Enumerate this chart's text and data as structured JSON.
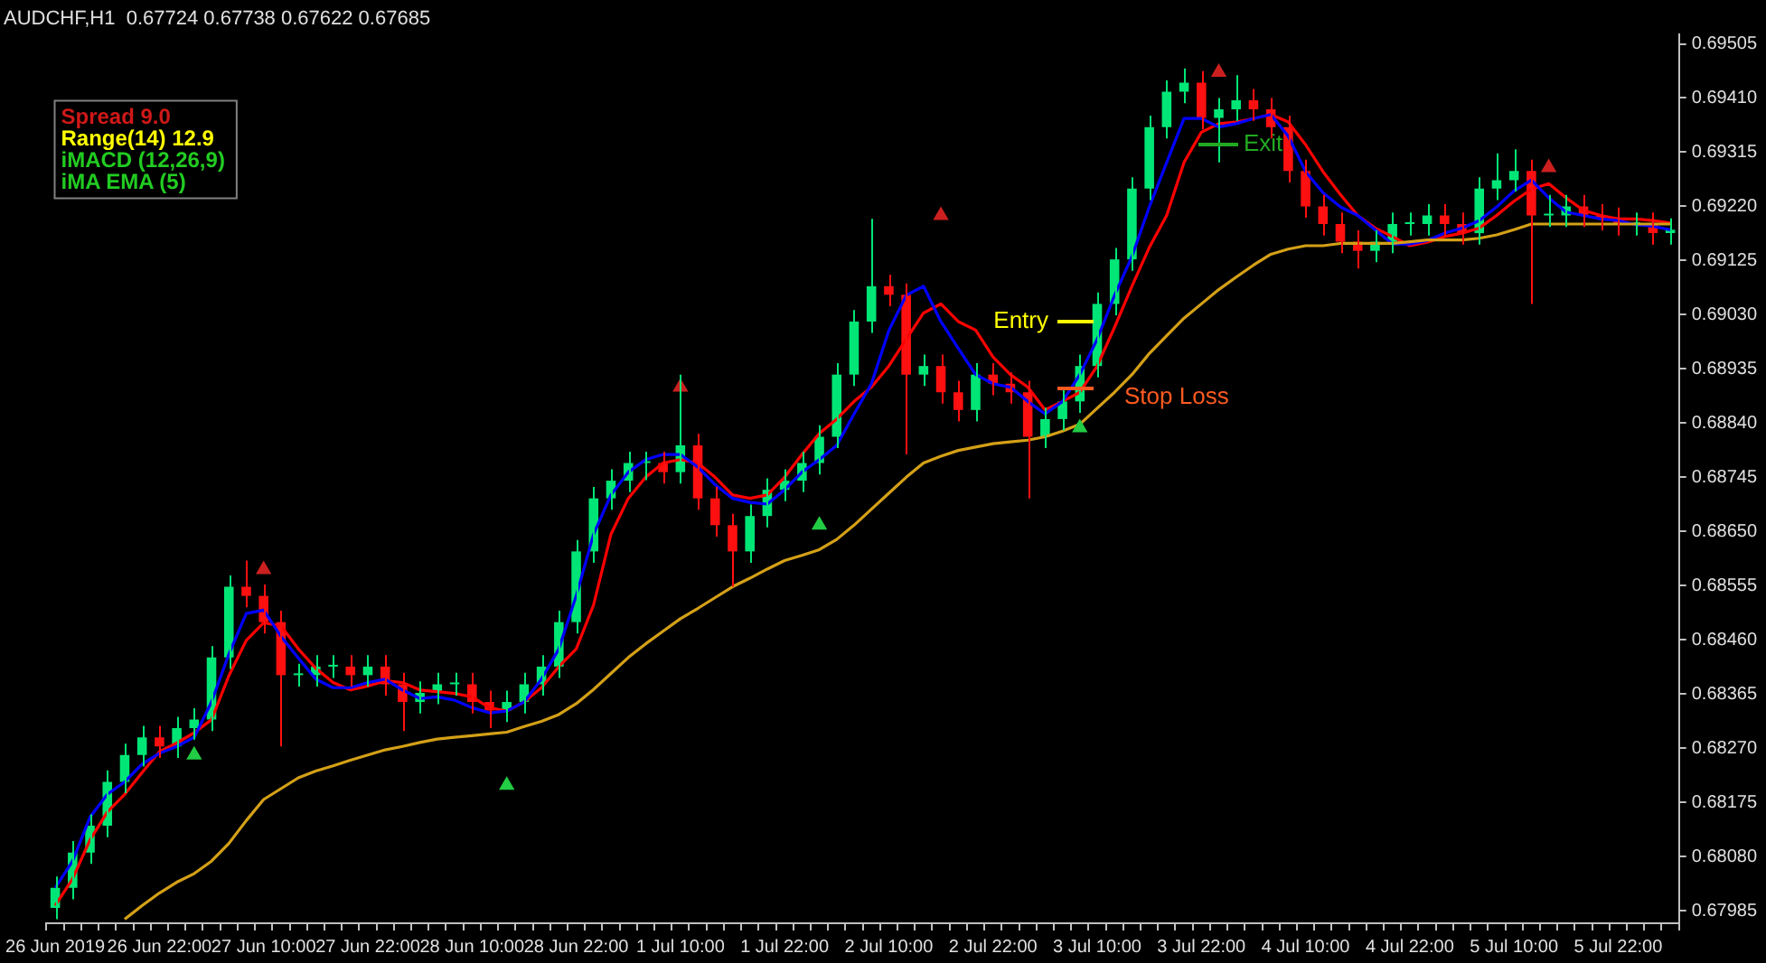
{
  "chart_data": {
    "type": "candlestick",
    "title": "AUDCHF,H1  0.67724 0.67738 0.67622 0.67685",
    "categories": [
      "26 Jun 2019",
      null,
      null,
      null,
      null,
      null,
      "26 Jun 22:00",
      null,
      null,
      null,
      null,
      null,
      "27 Jun 10:00",
      null,
      null,
      null,
      null,
      null,
      "27 Jun 22:00",
      null,
      null,
      null,
      null,
      null,
      "28 Jun 10:00",
      null,
      null,
      null,
      null,
      null,
      "28 Jun 22:00",
      null,
      null,
      null,
      null,
      null,
      "1 Jul 10:00",
      null,
      null,
      null,
      null,
      null,
      "1 Jul 22:00",
      null,
      null,
      null,
      null,
      null,
      "2 Jul 10:00",
      null,
      null,
      null,
      null,
      null,
      "2 Jul 22:00",
      null,
      null,
      null,
      null,
      null,
      "3 Jul 10:00",
      null,
      null,
      null,
      null,
      null,
      "3 Jul 22:00",
      null,
      null,
      null,
      null,
      null,
      "4 Jul 10:00",
      null,
      null,
      null,
      null,
      null,
      "4 Jul 22:00",
      null,
      null,
      null,
      null,
      null,
      "5 Jul 10:00",
      null,
      null,
      null,
      null,
      null,
      "5 Jul 22:00",
      null,
      null,
      null
    ],
    "ohlc": [
      [
        0.6799,
        0.68045,
        0.6797,
        0.68025
      ],
      [
        0.68025,
        0.68107,
        0.68005,
        0.68087
      ],
      [
        0.68087,
        0.68154,
        0.68067,
        0.68134
      ],
      [
        0.68134,
        0.68231,
        0.68114,
        0.68211
      ],
      [
        0.68211,
        0.68278,
        0.68191,
        0.68258
      ],
      [
        0.68258,
        0.68309,
        0.68238,
        0.68289
      ],
      [
        0.68289,
        0.68309,
        0.68253,
        0.68273
      ],
      [
        0.68273,
        0.68325,
        0.68253,
        0.68305
      ],
      [
        0.68305,
        0.6834,
        0.68285,
        0.6832
      ],
      [
        0.6832,
        0.68449,
        0.683,
        0.68429
      ],
      [
        0.68429,
        0.68573,
        0.68409,
        0.68553
      ],
      [
        0.68553,
        0.68599,
        0.68517,
        0.68537
      ],
      [
        0.68537,
        0.68557,
        0.68471,
        0.68491
      ],
      [
        0.68491,
        0.68511,
        0.68273,
        0.68398
      ],
      [
        0.68398,
        0.68418,
        0.68378,
        0.68398
      ],
      [
        0.68398,
        0.68433,
        0.68378,
        0.68413
      ],
      [
        0.68413,
        0.68433,
        0.68393,
        0.68413
      ],
      [
        0.68413,
        0.68433,
        0.68378,
        0.68398
      ],
      [
        0.68398,
        0.68433,
        0.68378,
        0.68413
      ],
      [
        0.68413,
        0.68433,
        0.68362,
        0.68382
      ],
      [
        0.68382,
        0.68402,
        0.683,
        0.68351
      ],
      [
        0.68351,
        0.68387,
        0.68331,
        0.68367
      ],
      [
        0.68367,
        0.68402,
        0.68347,
        0.68382
      ],
      [
        0.68382,
        0.68402,
        0.68362,
        0.68382
      ],
      [
        0.68382,
        0.68402,
        0.68331,
        0.68351
      ],
      [
        0.68351,
        0.68371,
        0.68305,
        0.68336
      ],
      [
        0.68336,
        0.68371,
        0.68316,
        0.68351
      ],
      [
        0.68351,
        0.68402,
        0.68331,
        0.68382
      ],
      [
        0.68382,
        0.68433,
        0.68362,
        0.68413
      ],
      [
        0.68413,
        0.68511,
        0.68393,
        0.68491
      ],
      [
        0.68491,
        0.68635,
        0.68471,
        0.68615
      ],
      [
        0.68615,
        0.68728,
        0.68595,
        0.68708
      ],
      [
        0.68708,
        0.68759,
        0.68688,
        0.68739
      ],
      [
        0.68739,
        0.6879,
        0.68719,
        0.6877
      ],
      [
        0.6877,
        0.6879,
        0.6874,
        0.6877
      ],
      [
        0.6877,
        0.6879,
        0.68734,
        0.68754
      ],
      [
        0.68754,
        0.68925,
        0.68734,
        0.68801
      ],
      [
        0.68801,
        0.68821,
        0.68688,
        0.68708
      ],
      [
        0.68708,
        0.68728,
        0.68641,
        0.68661
      ],
      [
        0.68661,
        0.68681,
        0.68553,
        0.68615
      ],
      [
        0.68615,
        0.68697,
        0.68595,
        0.68677
      ],
      [
        0.68677,
        0.68743,
        0.68657,
        0.68723
      ],
      [
        0.68723,
        0.68759,
        0.68703,
        0.68739
      ],
      [
        0.68739,
        0.6879,
        0.68719,
        0.6877
      ],
      [
        0.6877,
        0.68836,
        0.6875,
        0.68816
      ],
      [
        0.68816,
        0.68945,
        0.68796,
        0.68925
      ],
      [
        0.68925,
        0.69038,
        0.68905,
        0.69018
      ],
      [
        0.69018,
        0.69198,
        0.68998,
        0.6908
      ],
      [
        0.6908,
        0.691,
        0.69045,
        0.69065
      ],
      [
        0.69065,
        0.69085,
        0.68785,
        0.68925
      ],
      [
        0.68925,
        0.6896,
        0.68905,
        0.6894
      ],
      [
        0.6894,
        0.6896,
        0.68874,
        0.68894
      ],
      [
        0.68894,
        0.68914,
        0.68843,
        0.68863
      ],
      [
        0.68863,
        0.68945,
        0.68843,
        0.68925
      ],
      [
        0.68925,
        0.68945,
        0.68889,
        0.68909
      ],
      [
        0.68909,
        0.68929,
        0.68874,
        0.68894
      ],
      [
        0.68894,
        0.68914,
        0.68708,
        0.68816
      ],
      [
        0.68816,
        0.68867,
        0.68796,
        0.68847
      ],
      [
        0.68847,
        0.68898,
        0.68827,
        0.68878
      ],
      [
        0.68878,
        0.6896,
        0.68858,
        0.6894
      ],
      [
        0.6894,
        0.69069,
        0.6892,
        0.69049
      ],
      [
        0.69049,
        0.69147,
        0.69029,
        0.69127
      ],
      [
        0.69127,
        0.69271,
        0.69107,
        0.69251
      ],
      [
        0.69251,
        0.69379,
        0.69231,
        0.69359
      ],
      [
        0.69359,
        0.69441,
        0.69339,
        0.69421
      ],
      [
        0.69421,
        0.69462,
        0.69401,
        0.69437
      ],
      [
        0.69437,
        0.69457,
        0.69355,
        0.69375
      ],
      [
        0.69375,
        0.6941,
        0.69297,
        0.6939
      ],
      [
        0.6939,
        0.6945,
        0.6937,
        0.69406
      ],
      [
        0.69406,
        0.69426,
        0.6937,
        0.6939
      ],
      [
        0.6939,
        0.6941,
        0.69339,
        0.69359
      ],
      [
        0.69359,
        0.69379,
        0.69262,
        0.69282
      ],
      [
        0.69282,
        0.69302,
        0.692,
        0.6922
      ],
      [
        0.6922,
        0.6924,
        0.69169,
        0.69189
      ],
      [
        0.69189,
        0.69209,
        0.69138,
        0.69158
      ],
      [
        0.69158,
        0.69178,
        0.69111,
        0.69142
      ],
      [
        0.69142,
        0.69178,
        0.69122,
        0.69158
      ],
      [
        0.69158,
        0.69209,
        0.69138,
        0.69189
      ],
      [
        0.69189,
        0.69209,
        0.69169,
        0.69189
      ],
      [
        0.69189,
        0.69224,
        0.69169,
        0.69204
      ],
      [
        0.69204,
        0.69224,
        0.69169,
        0.69189
      ],
      [
        0.69189,
        0.69209,
        0.69153,
        0.69173
      ],
      [
        0.69173,
        0.69271,
        0.69153,
        0.69251
      ],
      [
        0.69251,
        0.69313,
        0.69231,
        0.69266
      ],
      [
        0.69266,
        0.6932,
        0.69246,
        0.69282
      ],
      [
        0.69282,
        0.69302,
        0.69049,
        0.69204
      ],
      [
        0.69204,
        0.6924,
        0.69184,
        0.69204
      ],
      [
        0.69204,
        0.6924,
        0.69184,
        0.6922
      ],
      [
        0.6922,
        0.6924,
        0.69184,
        0.69204
      ],
      [
        0.69204,
        0.69224,
        0.69178,
        0.69198
      ],
      [
        0.69198,
        0.69218,
        0.69169,
        0.69189
      ],
      [
        0.69189,
        0.69209,
        0.69169,
        0.69189
      ],
      [
        0.69189,
        0.69209,
        0.69153,
        0.69173
      ],
      [
        0.69173,
        0.69199,
        0.69153,
        0.69179
      ]
    ],
    "series": [
      {
        "type": "line",
        "color": "#d4a017",
        "values": [
          null,
          null,
          null,
          null,
          0.6797,
          0.67994,
          0.68016,
          0.68035,
          0.6805,
          0.68072,
          0.68103,
          0.68143,
          0.6818,
          0.68199,
          0.68218,
          0.6823,
          0.68239,
          0.68249,
          0.68258,
          0.68267,
          0.68273,
          0.6828,
          0.68286,
          0.68289,
          0.68292,
          0.68295,
          0.68298,
          0.68308,
          0.68317,
          0.68329,
          0.68348,
          0.68373,
          0.68401,
          0.68429,
          0.68453,
          0.68475,
          0.68497,
          0.68515,
          0.68534,
          0.68553,
          0.68568,
          0.68584,
          0.68599,
          0.68608,
          0.68618,
          0.68636,
          0.68661,
          0.68689,
          0.68717,
          0.68745,
          0.6877,
          0.68782,
          0.68792,
          0.68798,
          0.68804,
          0.68807,
          0.6881,
          0.68816,
          0.68826,
          0.68838,
          0.68866,
          0.68894,
          0.68925,
          0.68962,
          0.68993,
          0.69024,
          0.69049,
          0.69074,
          0.69096,
          0.69117,
          0.69136,
          0.69145,
          0.69151,
          0.69151,
          0.69155,
          0.69155,
          0.69155,
          0.69155,
          0.69158,
          0.69161,
          0.69161,
          0.69161,
          0.69164,
          0.6917,
          0.69179,
          0.69189,
          0.69189,
          0.69189,
          0.69189,
          0.69189,
          0.69189,
          0.69189,
          0.69189,
          0.69189
        ]
      },
      {
        "type": "line",
        "color": "#0000ff",
        "values": [
          0.68025,
          0.68072,
          0.68149,
          0.68189,
          0.68211,
          0.68242,
          0.68261,
          0.68273,
          0.68289,
          0.68351,
          0.68435,
          0.68506,
          0.68512,
          0.68466,
          0.68428,
          0.68391,
          0.68376,
          0.68376,
          0.68385,
          0.68391,
          0.68372,
          0.68357,
          0.6836,
          0.68354,
          0.68341,
          0.68332,
          0.68335,
          0.68351,
          0.68391,
          0.68444,
          0.68537,
          0.68645,
          0.68714,
          0.68754,
          0.68776,
          0.68785,
          0.68785,
          0.68763,
          0.68732,
          0.68708,
          0.68701,
          0.68698,
          0.68723,
          0.68754,
          0.68776,
          0.68801,
          0.68856,
          0.68909,
          0.69002,
          0.69064,
          0.6908,
          0.69018,
          0.68971,
          0.68925,
          0.68909,
          0.68903,
          0.68878,
          0.68856,
          0.68878,
          0.68925,
          0.68987,
          0.69064,
          0.69132,
          0.69219,
          0.69297,
          0.69374,
          0.69374,
          0.69359,
          0.69365,
          0.69374,
          0.69381,
          0.69343,
          0.69281,
          0.69244,
          0.69219,
          0.69204,
          0.69179,
          0.69154,
          0.69154,
          0.6916,
          0.69173,
          0.69182,
          0.69195,
          0.69219,
          0.69247,
          0.69266,
          0.69235,
          0.6921,
          0.69204,
          0.69198,
          0.69195,
          0.69188,
          0.69185,
          0.69179
        ]
      },
      {
        "type": "line",
        "color": "#ff0000",
        "values": [
          0.67994,
          0.68041,
          0.68109,
          0.68158,
          0.68189,
          0.68227,
          0.68264,
          0.68279,
          0.68297,
          0.6832,
          0.68397,
          0.68459,
          0.6849,
          0.68484,
          0.68444,
          0.6841,
          0.68385,
          0.68372,
          0.68379,
          0.68388,
          0.68385,
          0.68372,
          0.68369,
          0.68366,
          0.6836,
          0.68341,
          0.68335,
          0.68351,
          0.68376,
          0.68413,
          0.68444,
          0.68521,
          0.68645,
          0.68708,
          0.68745,
          0.6877,
          0.68776,
          0.6877,
          0.68745,
          0.68714,
          0.68708,
          0.68714,
          0.68745,
          0.68785,
          0.68822,
          0.68847,
          0.68878,
          0.68903,
          0.6894,
          0.68987,
          0.69033,
          0.69049,
          0.69018,
          0.69003,
          0.68956,
          0.68925,
          0.68903,
          0.68863,
          0.68878,
          0.68894,
          0.6894,
          0.69008,
          0.6908,
          0.69148,
          0.69204,
          0.69297,
          0.6935,
          0.69365,
          0.69368,
          0.69374,
          0.69381,
          0.69368,
          0.69328,
          0.69281,
          0.69241,
          0.69204,
          0.69182,
          0.69167,
          0.69151,
          0.69157,
          0.69167,
          0.69173,
          0.69182,
          0.69204,
          0.69229,
          0.6925,
          0.6926,
          0.69235,
          0.69213,
          0.69204,
          0.69198,
          0.69198,
          0.69195,
          0.69191
        ]
      },
      {
        "type": "scatter",
        "color": "#22cc44",
        "marker": "triangle",
        "values": [
          null,
          null,
          null,
          null,
          null,
          null,
          null,
          null,
          0.68258,
          null,
          null,
          null,
          null,
          null,
          null,
          null,
          null,
          null,
          null,
          null,
          null,
          null,
          null,
          null,
          null,
          null,
          0.68205,
          null,
          null,
          null,
          null,
          null,
          null,
          null,
          null,
          null,
          null,
          null,
          null,
          null,
          null,
          null,
          null,
          null,
          0.68661,
          null,
          null,
          null,
          null,
          null,
          null,
          null,
          null,
          null,
          null,
          null,
          null,
          null,
          null,
          0.68832,
          null,
          null,
          null,
          null,
          null,
          null,
          null,
          null,
          null,
          null,
          null,
          null,
          null,
          null,
          null,
          null,
          null,
          null,
          null,
          null,
          null,
          null,
          null,
          null,
          null,
          null,
          null,
          null,
          null,
          null,
          null,
          null,
          null,
          null
        ]
      },
      {
        "type": "scatter",
        "color": "#cc2020",
        "marker": "triangle",
        "values": [
          null,
          null,
          null,
          null,
          null,
          null,
          null,
          null,
          null,
          null,
          null,
          null,
          0.68583,
          null,
          null,
          null,
          null,
          null,
          null,
          null,
          null,
          null,
          null,
          null,
          null,
          null,
          null,
          null,
          null,
          null,
          null,
          null,
          null,
          null,
          null,
          null,
          0.68903,
          null,
          null,
          null,
          null,
          null,
          null,
          null,
          null,
          null,
          null,
          null,
          null,
          null,
          null,
          0.69204,
          null,
          null,
          null,
          null,
          null,
          null,
          null,
          null,
          null,
          null,
          null,
          null,
          null,
          null,
          null,
          0.69455,
          null,
          null,
          null,
          null,
          null,
          null,
          null,
          null,
          null,
          null,
          null,
          null,
          null,
          null,
          null,
          null,
          null,
          null,
          0.69288,
          null,
          null,
          null,
          null,
          null,
          null,
          null
        ]
      }
    ],
    "ylim": [
      0.67963,
      0.69521
    ],
    "yticks": [
      0.67985,
      {
        "value": 0.6808,
        "label": "0.68080"
      },
      0.68175,
      {
        "value": 0.6827,
        "label": "0.68270"
      },
      0.68365,
      {
        "value": 0.6846,
        "label": "0.68460"
      },
      0.68555,
      {
        "value": 0.6865,
        "label": "0.68650"
      },
      0.68745,
      {
        "value": 0.6884,
        "label": "0.68840"
      },
      0.68935,
      {
        "value": 0.6903,
        "label": "0.69030"
      },
      0.69125,
      {
        "value": 0.6922,
        "label": "0.69220"
      },
      0.69315,
      {
        "value": 0.6941,
        "label": "0.69410"
      },
      0.69505
    ],
    "annotations": [
      "Spread 9.0",
      "Range(14) 12.9",
      "iMACD (12,26,9)",
      "iMA EMA (5)",
      "Entry",
      "Stop Loss",
      "Exit"
    ],
    "grid": false,
    "legend": false
  }
}
